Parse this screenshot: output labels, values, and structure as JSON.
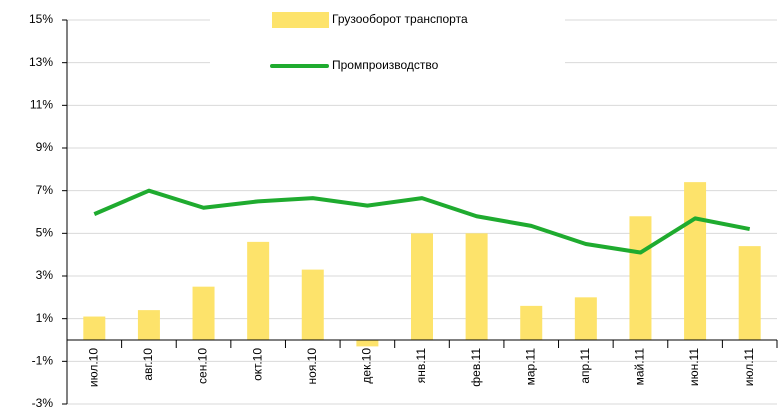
{
  "chart_data": {
    "type": "bar_line",
    "categories": [
      "июл.10",
      "авг.10",
      "сен.10",
      "окт.10",
      "ноя.10",
      "дек.10",
      "янв.11",
      "фев.11",
      "мар.11",
      "апр.11",
      "май.11",
      "июн.11",
      "июл.11"
    ],
    "series": [
      {
        "name": "Грузооборот транспорта",
        "type": "bar",
        "color": "#fde36b",
        "values": [
          1.1,
          1.4,
          2.5,
          4.6,
          3.3,
          -0.3,
          5.0,
          5.0,
          1.6,
          2.0,
          5.8,
          7.4,
          4.4
        ]
      },
      {
        "name": "Промпроизводство",
        "type": "line",
        "color": "#1fab2f",
        "values": [
          5.9,
          7.0,
          6.2,
          6.5,
          6.65,
          6.3,
          6.65,
          5.8,
          5.35,
          4.5,
          4.1,
          5.7,
          5.2
        ]
      }
    ],
    "ylim": [
      -3,
      15
    ],
    "yticks": [
      {
        "value": -3,
        "label": "-3%"
      },
      {
        "value": -1,
        "label": "-1%"
      },
      {
        "value": 1,
        "label": "1%"
      },
      {
        "value": 3,
        "label": "3%"
      },
      {
        "value": 5,
        "label": "5%"
      },
      {
        "value": 7,
        "label": "7%"
      },
      {
        "value": 9,
        "label": "9%"
      },
      {
        "value": 11,
        "label": "11%"
      },
      {
        "value": 13,
        "label": "13%"
      },
      {
        "value": 15,
        "label": "15%"
      }
    ],
    "grid": true
  }
}
